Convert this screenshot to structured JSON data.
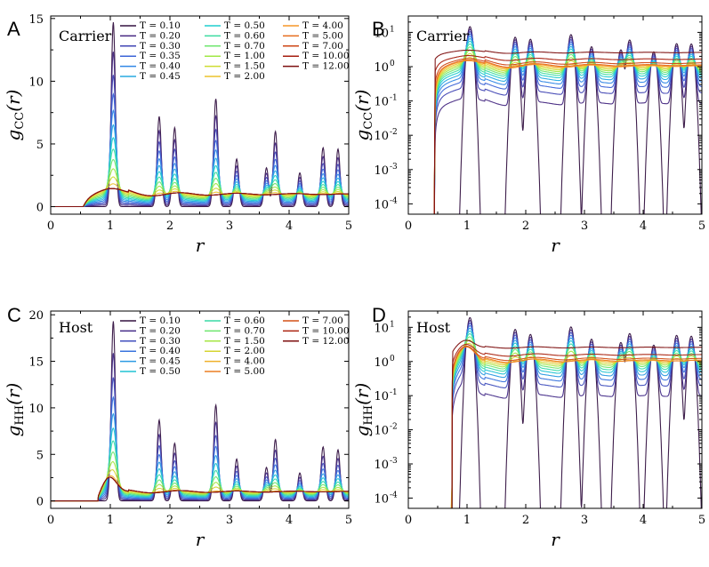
{
  "figure": {
    "panels": [
      {
        "label": "A",
        "title": "Carrier",
        "ylabel": "g",
        "ylabel_sub": "CC",
        "ylabel_tail": "(r)",
        "xlabel": "r"
      },
      {
        "label": "B",
        "title": "Carrier",
        "ylabel": "g",
        "ylabel_sub": "CC",
        "ylabel_tail": "(r)",
        "xlabel": "r"
      },
      {
        "label": "C",
        "title": "Host",
        "ylabel": "g",
        "ylabel_sub": "HH",
        "ylabel_tail": "(r)",
        "xlabel": "r"
      },
      {
        "label": "D",
        "title": "Host",
        "ylabel": "g",
        "ylabel_sub": "HH",
        "ylabel_tail": "(r)",
        "xlabel": "r"
      }
    ]
  },
  "chart_data": [
    {
      "type": "line",
      "panel": "A",
      "title": "Carrier",
      "xlabel": "r",
      "ylabel": "gCC(r)",
      "xlim": [
        0,
        5
      ],
      "ylim": [
        -0.6,
        15.2
      ],
      "yscale": "linear",
      "xticks": [
        0,
        1,
        2,
        3,
        4,
        5
      ],
      "yticks": [
        0,
        5,
        10,
        15
      ],
      "legend_position": "top-right",
      "legend": [
        "T = 0.10",
        "T = 0.20",
        "T = 0.30",
        "T = 0.35",
        "T = 0.40",
        "T = 0.45",
        "T = 0.50",
        "T = 0.60",
        "T = 0.70",
        "T = 1.00",
        "T = 1.50",
        "T = 2.00",
        "T = 4.00",
        "T = 5.00",
        "T = 7.00",
        "T = 10.00",
        "T = 12.00"
      ],
      "temperatures": [
        0.1,
        0.2,
        0.3,
        0.35,
        0.4,
        0.45,
        0.5,
        0.6,
        0.7,
        1.0,
        1.5,
        2.0,
        4.0,
        5.0,
        7.0,
        10.0,
        12.0
      ],
      "peak_positions": [
        1.05,
        1.82,
        2.08,
        2.77,
        3.12,
        3.62,
        3.77,
        4.18,
        4.57,
        4.82
      ],
      "peak_heights_lowest_T": [
        14.7,
        7.2,
        6.3,
        8.6,
        3.8,
        3.1,
        6.0,
        2.7,
        4.7,
        4.6
      ],
      "high_T_first_peak": 1.45,
      "onset_r": 0.55
    },
    {
      "type": "line",
      "panel": "B",
      "title": "Carrier",
      "xlabel": "r",
      "ylabel": "gCC(r)",
      "xlim": [
        0,
        5
      ],
      "ylim": [
        5e-05,
        30
      ],
      "yscale": "log",
      "xticks": [
        0,
        1,
        2,
        3,
        4,
        5
      ],
      "yticks": [
        "10^-4",
        "10^-3",
        "10^-2",
        "10^-1",
        "10^0",
        "10^1"
      ],
      "peak_positions": [
        1.05,
        1.82,
        2.08,
        2.77,
        3.12,
        3.62,
        3.77,
        4.18,
        4.57,
        4.82
      ],
      "peak_heights_lowest_T": [
        14.7,
        7.2,
        6.3,
        8.6,
        3.8,
        3.1,
        6.0,
        2.7,
        4.7,
        4.6
      ],
      "onset_r": 0.45
    },
    {
      "type": "line",
      "panel": "C",
      "title": "Host",
      "xlabel": "r",
      "ylabel": "gHH(r)",
      "xlim": [
        0,
        5
      ],
      "ylim": [
        -0.8,
        20.4
      ],
      "yscale": "linear",
      "xticks": [
        0,
        1,
        2,
        3,
        4,
        5
      ],
      "yticks": [
        0,
        5,
        10,
        15,
        20
      ],
      "legend_position": "top-right",
      "legend": [
        "T = 0.10",
        "T = 0.20",
        "T = 0.30",
        "T = 0.40",
        "T = 0.45",
        "T = 0.50",
        "T = 0.60",
        "T = 0.70",
        "T = 1.50",
        "T = 2.00",
        "T = 4.00",
        "T = 5.00",
        "T = 7.00",
        "T = 10.00",
        "T = 12.00"
      ],
      "temperatures": [
        0.1,
        0.2,
        0.3,
        0.4,
        0.45,
        0.5,
        0.6,
        0.7,
        1.5,
        2.0,
        4.0,
        5.0,
        7.0,
        10.0,
        12.0
      ],
      "peak_positions": [
        1.05,
        1.82,
        2.08,
        2.77,
        3.12,
        3.62,
        3.77,
        4.18,
        4.57,
        4.82
      ],
      "peak_heights_lowest_T": [
        19.3,
        8.7,
        6.2,
        10.3,
        4.5,
        3.6,
        6.6,
        3.0,
        5.8,
        5.5
      ],
      "high_T_first_peak": 2.7,
      "onset_r": 0.8
    },
    {
      "type": "line",
      "panel": "D",
      "title": "Host",
      "xlabel": "r",
      "ylabel": "gHH(r)",
      "xlim": [
        0,
        5
      ],
      "ylim": [
        5e-05,
        30
      ],
      "yscale": "log",
      "xticks": [
        0,
        1,
        2,
        3,
        4,
        5
      ],
      "yticks": [
        "10^-4",
        "10^-3",
        "10^-2",
        "10^-1",
        "10^0",
        "10^1"
      ],
      "peak_positions": [
        1.05,
        1.82,
        2.08,
        2.77,
        3.12,
        3.62,
        3.77,
        4.18,
        4.57,
        4.82
      ],
      "peak_heights_lowest_T": [
        19.3,
        8.7,
        6.2,
        10.3,
        4.5,
        3.6,
        6.6,
        3.0,
        5.8,
        5.5
      ],
      "onset_r": 0.75
    }
  ]
}
